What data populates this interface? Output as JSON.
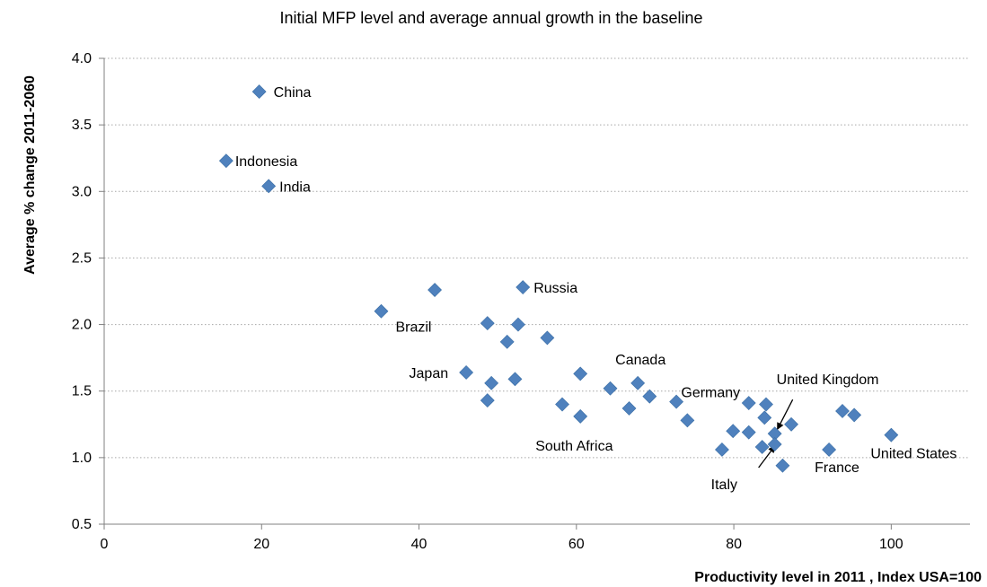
{
  "chart_data": {
    "type": "scatter",
    "title": "Initial MFP level and average annual growth in the baseline",
    "xlabel": "Productivity level in 2011 , Index USA=100",
    "ylabel": "Average % change 2011-2060",
    "xlim": [
      0,
      110
    ],
    "ylim": [
      0.5,
      4.0
    ],
    "xticks": [
      "0",
      "20",
      "40",
      "60",
      "80",
      "100"
    ],
    "yticks": [
      "0.5",
      "1.0",
      "1.5",
      "2.0",
      "2.5",
      "3.0",
      "3.5",
      "4.0"
    ],
    "grid": "horizontal dotted",
    "marker_color": "#4f81bd",
    "points": [
      {
        "x": 19.7,
        "y": 3.75,
        "label": "China"
      },
      {
        "x": 15.5,
        "y": 3.23,
        "label": "Indonesia"
      },
      {
        "x": 20.9,
        "y": 3.04,
        "label": "India"
      },
      {
        "x": 42.0,
        "y": 2.26,
        "label": ""
      },
      {
        "x": 53.2,
        "y": 2.28,
        "label": "Russia"
      },
      {
        "x": 35.2,
        "y": 2.1,
        "label": "Brazil"
      },
      {
        "x": 48.7,
        "y": 2.01,
        "label": ""
      },
      {
        "x": 52.6,
        "y": 2.0,
        "label": ""
      },
      {
        "x": 51.2,
        "y": 1.87,
        "label": ""
      },
      {
        "x": 56.3,
        "y": 1.9,
        "label": ""
      },
      {
        "x": 46.0,
        "y": 1.64,
        "label": "Japan"
      },
      {
        "x": 49.2,
        "y": 1.56,
        "label": ""
      },
      {
        "x": 52.2,
        "y": 1.59,
        "label": ""
      },
      {
        "x": 48.7,
        "y": 1.43,
        "label": ""
      },
      {
        "x": 60.5,
        "y": 1.63,
        "label": ""
      },
      {
        "x": 58.2,
        "y": 1.4,
        "label": ""
      },
      {
        "x": 60.5,
        "y": 1.31,
        "label": "South Africa"
      },
      {
        "x": 64.3,
        "y": 1.52,
        "label": ""
      },
      {
        "x": 67.8,
        "y": 1.56,
        "label": "Canada"
      },
      {
        "x": 69.3,
        "y": 1.46,
        "label": ""
      },
      {
        "x": 66.7,
        "y": 1.37,
        "label": ""
      },
      {
        "x": 72.7,
        "y": 1.42,
        "label": ""
      },
      {
        "x": 74.1,
        "y": 1.28,
        "label": "Germany"
      },
      {
        "x": 78.5,
        "y": 1.06,
        "label": ""
      },
      {
        "x": 79.9,
        "y": 1.2,
        "label": ""
      },
      {
        "x": 81.9,
        "y": 1.41,
        "label": ""
      },
      {
        "x": 81.9,
        "y": 1.19,
        "label": ""
      },
      {
        "x": 84.1,
        "y": 1.4,
        "label": ""
      },
      {
        "x": 83.9,
        "y": 1.3,
        "label": ""
      },
      {
        "x": 83.6,
        "y": 1.08,
        "label": ""
      },
      {
        "x": 85.2,
        "y": 1.18,
        "label": "United Kingdom"
      },
      {
        "x": 85.2,
        "y": 1.1,
        "label": "Italy"
      },
      {
        "x": 86.2,
        "y": 0.94,
        "label": ""
      },
      {
        "x": 87.3,
        "y": 1.25,
        "label": ""
      },
      {
        "x": 92.1,
        "y": 1.06,
        "label": "France"
      },
      {
        "x": 93.8,
        "y": 1.35,
        "label": ""
      },
      {
        "x": 95.3,
        "y": 1.32,
        "label": ""
      },
      {
        "x": 100.0,
        "y": 1.17,
        "label": "United States"
      }
    ]
  }
}
